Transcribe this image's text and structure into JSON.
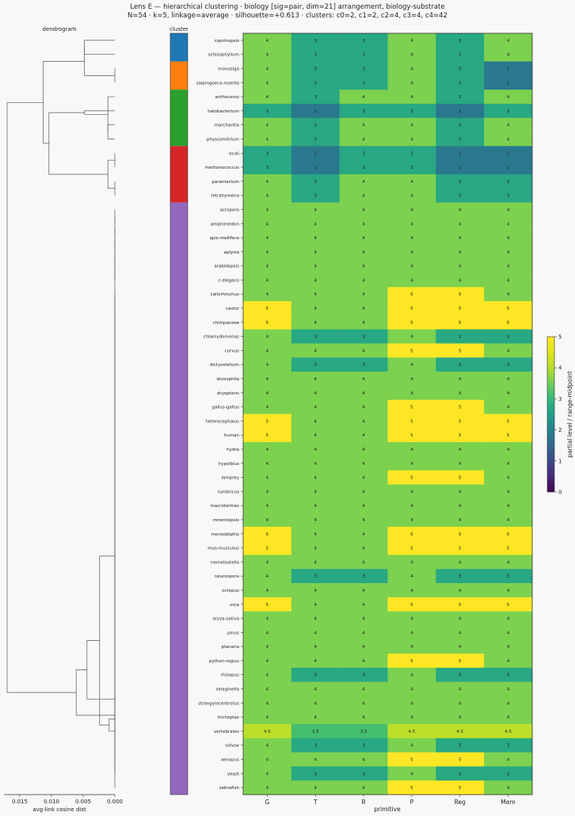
{
  "title_line1": "Lens E — hierarchical clustering · biology [sig=pair, dim=21] arrangement, biology-substrate",
  "title_line2": "N=54 · k=5, linkage=average · silhouette=+0.613 · clusters: c0=2, c1=2, c2=4, c3=4, c4=42",
  "dendrogram": {
    "title": "dendrogram",
    "xlabel": "avg-link cosine dist",
    "ticks": [
      0.015,
      0.01,
      0.005,
      0.0
    ],
    "tick_labels": [
      "0.015",
      "0.010",
      "0.005",
      "0.000"
    ],
    "xlim": [
      0.0175,
      0.0
    ]
  },
  "cluster_strip": {
    "title": "cluster",
    "colors": {
      "c0": "#1f77b4",
      "c1": "#ff7f0e",
      "c2": "#2ca02c",
      "c3": "#d62728",
      "c4": "#9467bd"
    }
  },
  "colorbar": {
    "label": "partial level / range-midpoint",
    "ticks": [
      0,
      1,
      2,
      3,
      4,
      5
    ],
    "tick_labels": [
      "0",
      "1",
      "2",
      "3",
      "4",
      "5"
    ],
    "range": [
      0,
      5
    ],
    "colormap": "viridis"
  },
  "chart_data": {
    "type": "heatmap",
    "xlabel": "primitive",
    "columns": [
      "G",
      "T",
      "R",
      "P",
      "Reg",
      "Mem"
    ],
    "rows": [
      {
        "label": "coprinopsis",
        "cluster": "c0",
        "values": [
          4,
          3,
          3,
          4,
          3,
          4
        ]
      },
      {
        "label": "schizophyllum",
        "cluster": "c0",
        "values": [
          4,
          3,
          3,
          4,
          3,
          4
        ]
      },
      {
        "label": "monosiga",
        "cluster": "c1",
        "values": [
          4,
          3,
          3,
          4,
          3,
          2
        ]
      },
      {
        "label": "salpingoeca-rosetta",
        "cluster": "c1",
        "values": [
          4,
          3,
          3,
          4,
          3,
          2
        ]
      },
      {
        "label": "anthoceros",
        "cluster": "c2",
        "values": [
          4,
          3,
          4,
          4,
          3,
          4
        ]
      },
      {
        "label": "halobacterium",
        "cluster": "c2",
        "values": [
          3,
          2,
          3,
          3,
          2,
          3
        ]
      },
      {
        "label": "marchantia",
        "cluster": "c2",
        "values": [
          4,
          3,
          4,
          4,
          3,
          4
        ]
      },
      {
        "label": "physcomitrium",
        "cluster": "c2",
        "values": [
          4,
          3,
          4,
          4,
          3,
          4
        ]
      },
      {
        "label": "ecoli",
        "cluster": "c3",
        "values": [
          3,
          2,
          3,
          3,
          2,
          2
        ]
      },
      {
        "label": "methanococcus",
        "cluster": "c3",
        "values": [
          3,
          2,
          3,
          3,
          2,
          2
        ]
      },
      {
        "label": "paramecium",
        "cluster": "c3",
        "values": [
          4,
          3,
          4,
          4,
          3,
          3
        ]
      },
      {
        "label": "tetrahymena",
        "cluster": "c3",
        "values": [
          4,
          3,
          4,
          4,
          3,
          3
        ]
      },
      {
        "label": "acropora",
        "cluster": "c4",
        "values": [
          4,
          4,
          4,
          4,
          4,
          4
        ]
      },
      {
        "label": "amphimedon",
        "cluster": "c4",
        "values": [
          4,
          4,
          4,
          4,
          4,
          4
        ]
      },
      {
        "label": "apis-mellifera",
        "cluster": "c4",
        "values": [
          4,
          4,
          4,
          4,
          4,
          4
        ]
      },
      {
        "label": "aplysia",
        "cluster": "c4",
        "values": [
          4,
          4,
          4,
          4,
          4,
          4
        ]
      },
      {
        "label": "arabidopsis",
        "cluster": "c4",
        "values": [
          4,
          4,
          4,
          4,
          4,
          4
        ]
      },
      {
        "label": "c-elegans",
        "cluster": "c4",
        "values": [
          4,
          4,
          4,
          4,
          4,
          4
        ]
      },
      {
        "label": "callorhinchus",
        "cluster": "c4",
        "values": [
          4,
          4,
          4,
          5,
          5,
          4
        ]
      },
      {
        "label": "castor",
        "cluster": "c4",
        "values": [
          5,
          4,
          4,
          5,
          5,
          5
        ]
      },
      {
        "label": "chimpanzee",
        "cluster": "c4",
        "values": [
          5,
          4,
          4,
          5,
          5,
          5
        ]
      },
      {
        "label": "chlamydomonas",
        "cluster": "c4",
        "values": [
          4,
          3,
          3,
          4,
          3,
          3
        ]
      },
      {
        "label": "corvus",
        "cluster": "c4",
        "values": [
          4,
          4,
          4,
          5,
          5,
          4
        ]
      },
      {
        "label": "dictyostelium",
        "cluster": "c4",
        "values": [
          4,
          3,
          3,
          4,
          3,
          3
        ]
      },
      {
        "label": "drosophila",
        "cluster": "c4",
        "values": [
          4,
          4,
          4,
          4,
          4,
          4
        ]
      },
      {
        "label": "dryopteris",
        "cluster": "c4",
        "values": [
          4,
          4,
          4,
          4,
          4,
          4
        ]
      },
      {
        "label": "gallus-gallus",
        "cluster": "c4",
        "values": [
          4,
          4,
          4,
          5,
          5,
          4
        ]
      },
      {
        "label": "heterocephalus",
        "cluster": "c4",
        "values": [
          5,
          4,
          4,
          5,
          5,
          5
        ]
      },
      {
        "label": "human",
        "cluster": "c4",
        "values": [
          5,
          4,
          4,
          5,
          5,
          5
        ]
      },
      {
        "label": "hydra",
        "cluster": "c4",
        "values": [
          4,
          4,
          4,
          4,
          4,
          4
        ]
      },
      {
        "label": "hypsibius",
        "cluster": "c4",
        "values": [
          4,
          4,
          4,
          4,
          4,
          4
        ]
      },
      {
        "label": "lamprey",
        "cluster": "c4",
        "values": [
          4,
          4,
          4,
          5,
          5,
          4
        ]
      },
      {
        "label": "lumbricus",
        "cluster": "c4",
        "values": [
          4,
          4,
          4,
          4,
          4,
          4
        ]
      },
      {
        "label": "macrotermes",
        "cluster": "c4",
        "values": [
          4,
          4,
          4,
          4,
          4,
          4
        ]
      },
      {
        "label": "mnemiopsis",
        "cluster": "c4",
        "values": [
          4,
          4,
          4,
          4,
          4,
          4
        ]
      },
      {
        "label": "monodelphis",
        "cluster": "c4",
        "values": [
          5,
          4,
          4,
          5,
          5,
          5
        ]
      },
      {
        "label": "mus-musculus",
        "cluster": "c4",
        "values": [
          5,
          4,
          4,
          5,
          5,
          5
        ]
      },
      {
        "label": "nematostella",
        "cluster": "c4",
        "values": [
          4,
          4,
          4,
          4,
          4,
          4
        ]
      },
      {
        "label": "neurospora",
        "cluster": "c4",
        "values": [
          4,
          3,
          3,
          4,
          3,
          3
        ]
      },
      {
        "label": "octopus",
        "cluster": "c4",
        "values": [
          4,
          4,
          4,
          4,
          4,
          4
        ]
      },
      {
        "label": "orca",
        "cluster": "c4",
        "values": [
          5,
          4,
          4,
          5,
          5,
          5
        ]
      },
      {
        "label": "oryza-sativa",
        "cluster": "c4",
        "values": [
          4,
          4,
          4,
          4,
          4,
          4
        ]
      },
      {
        "label": "pinus",
        "cluster": "c4",
        "values": [
          4,
          4,
          4,
          4,
          4,
          4
        ]
      },
      {
        "label": "planaria",
        "cluster": "c4",
        "values": [
          4,
          4,
          4,
          4,
          4,
          4
        ]
      },
      {
        "label": "python-regius",
        "cluster": "c4",
        "values": [
          4,
          4,
          4,
          5,
          5,
          4
        ]
      },
      {
        "label": "rhizopus",
        "cluster": "c4",
        "values": [
          4,
          3,
          3,
          4,
          3,
          3
        ]
      },
      {
        "label": "selaginella",
        "cluster": "c4",
        "values": [
          4,
          4,
          4,
          4,
          4,
          4
        ]
      },
      {
        "label": "strongylocentrotus",
        "cluster": "c4",
        "values": [
          4,
          4,
          4,
          4,
          4,
          4
        ]
      },
      {
        "label": "trichoplax",
        "cluster": "c4",
        "values": [
          4,
          4,
          4,
          4,
          4,
          4
        ]
      },
      {
        "label": "vertebrates",
        "cluster": "c4",
        "values": [
          4.5,
          3.5,
          3.5,
          4.5,
          4.5,
          4.5
        ]
      },
      {
        "label": "volvox",
        "cluster": "c4",
        "values": [
          4,
          3,
          3,
          4,
          3,
          3
        ]
      },
      {
        "label": "xenopus",
        "cluster": "c4",
        "values": [
          4,
          4,
          4,
          5,
          5,
          4
        ]
      },
      {
        "label": "yeast",
        "cluster": "c4",
        "values": [
          4,
          3,
          3,
          4,
          3,
          3
        ]
      },
      {
        "label": "zebrafish",
        "cluster": "c4",
        "values": [
          4,
          4,
          4,
          5,
          5,
          4
        ]
      }
    ],
    "dendrogram_links": [
      {
        "a": 0,
        "b": 1,
        "height": 0.0048
      },
      {
        "a": 2,
        "b": 3,
        "height": 0.0
      },
      {
        "a": "L0",
        "b": "L1",
        "height": 0.0048
      },
      {
        "a": 6,
        "b": 7,
        "height": 0.0011
      },
      {
        "a": 4,
        "b": "L3",
        "height": 0.0011
      },
      {
        "a": 5,
        "b": "L4",
        "height": 0.0048
      },
      {
        "a": 8,
        "b": 9,
        "height": 0.0
      },
      {
        "a": 10,
        "b": 11,
        "height": 0.0
      },
      {
        "a": "L6",
        "b": "L7",
        "height": 0.0011
      },
      {
        "a": "L5",
        "b": "L8",
        "height": 0.0104
      },
      {
        "a": "L2",
        "b": "L9",
        "height": 0.0113
      },
      {
        "a": 12,
        "b": 13,
        "height": 0.0
      },
      {
        "a": "L11",
        "b": 14,
        "height": 0.0
      },
      {
        "a": "L12",
        "b": 15,
        "height": 0.0
      },
      {
        "a": "L13",
        "b": 16,
        "height": 0.0
      },
      {
        "a": "L14",
        "b": 17,
        "height": 0.0
      },
      {
        "a": 18,
        "b": 22,
        "height": 0.0
      },
      {
        "a": "L16",
        "b": 26,
        "height": 0.0
      },
      {
        "a": "L17",
        "b": 31,
        "height": 0.0
      },
      {
        "a": "L18",
        "b": 44,
        "height": 0.0
      },
      {
        "a": "L19",
        "b": 51,
        "height": 0.0
      },
      {
        "a": "L20",
        "b": 53,
        "height": 0.0
      },
      {
        "a": 19,
        "b": 20,
        "height": 0.0
      },
      {
        "a": "L22",
        "b": 27,
        "height": 0.0
      },
      {
        "a": "L23",
        "b": 28,
        "height": 0.0
      },
      {
        "a": "L24",
        "b": 35,
        "height": 0.0
      },
      {
        "a": "L25",
        "b": 36,
        "height": 0.0
      },
      {
        "a": "L26",
        "b": 40,
        "height": 0.0
      },
      {
        "a": 21,
        "b": 23,
        "height": 0.0
      },
      {
        "a": "L28",
        "b": 38,
        "height": 0.0
      },
      {
        "a": "L29",
        "b": 45,
        "height": 0.0
      },
      {
        "a": "L30",
        "b": 50,
        "height": 0.0
      },
      {
        "a": "L31",
        "b": 52,
        "height": 0.0
      },
      {
        "a": "L15",
        "b": 24,
        "height": 0.0
      },
      {
        "a": "L33",
        "b": 25,
        "height": 0.0
      },
      {
        "a": "L34",
        "b": 29,
        "height": 0.0
      },
      {
        "a": "L35",
        "b": 30,
        "height": 0.0
      },
      {
        "a": "L36",
        "b": 32,
        "height": 0.0
      },
      {
        "a": "L37",
        "b": 33,
        "height": 0.0
      },
      {
        "a": "L38",
        "b": 34,
        "height": 0.0
      },
      {
        "a": "L39",
        "b": 37,
        "height": 0.0
      },
      {
        "a": "L40",
        "b": 39,
        "height": 0.0
      },
      {
        "a": "L41",
        "b": 41,
        "height": 0.0
      },
      {
        "a": "L42",
        "b": 42,
        "height": 0.0
      },
      {
        "a": "L43",
        "b": 43,
        "height": 0.0
      },
      {
        "a": "L44",
        "b": 46,
        "height": 0.0
      },
      {
        "a": "L45",
        "b": 47,
        "height": 0.0
      },
      {
        "a": "L46",
        "b": 48,
        "height": 0.0
      },
      {
        "a": "L21",
        "b": 49,
        "height": 0.0009
      },
      {
        "a": "L27",
        "b": "L48",
        "height": 0.0024
      },
      {
        "a": "L47",
        "b": "L49",
        "height": 0.0044
      },
      {
        "a": "L32",
        "b": "L50",
        "height": 0.0061
      },
      {
        "a": "L10",
        "b": "L51",
        "height": 0.017
      }
    ]
  }
}
